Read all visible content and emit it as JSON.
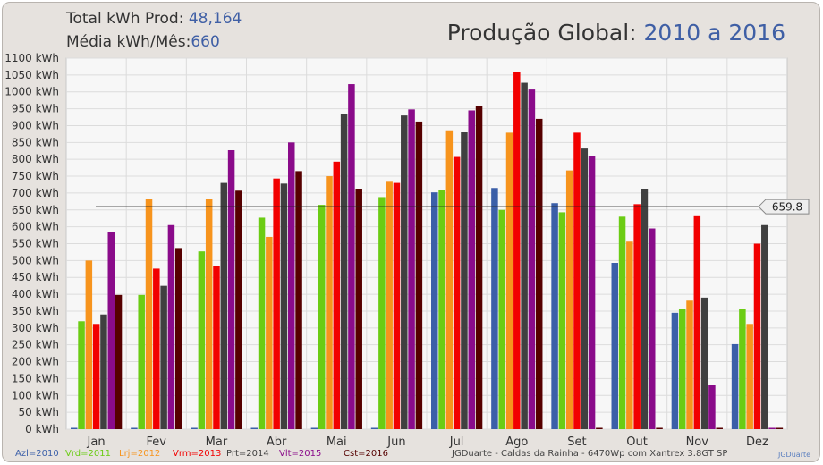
{
  "header": {
    "total_label": "Total kWh Prod:",
    "total_value": "48,164",
    "avg_label": "Média kWh/Mês:",
    "avg_value": "660",
    "title_label": "Produção Global:",
    "title_value": "2010 a 2016"
  },
  "chart_data": {
    "type": "bar",
    "categories": [
      "Jan",
      "Fev",
      "Mar",
      "Abr",
      "Mai",
      "Jun",
      "Jul",
      "Ago",
      "Set",
      "Out",
      "Nov",
      "Dez"
    ],
    "y_ticks": [
      "0 kWh",
      "50 kWh",
      "100 kWh",
      "150 kWh",
      "200 kWh",
      "250 kWh",
      "300 kWh",
      "350 kWh",
      "400 kWh",
      "450 kWh",
      "500 kWh",
      "550 kWh",
      "600 kWh",
      "650 kWh",
      "700 kWh",
      "750 kWh",
      "800 kWh",
      "850 kWh",
      "900 kWh",
      "950 kWh",
      "1000 kWh",
      "1050 kWh",
      "1100 kWh"
    ],
    "ylim": [
      0,
      1100
    ],
    "grid": true,
    "series": [
      {
        "name": "Azl=2010",
        "color": "#3b5fa8",
        "values": [
          0,
          0,
          0,
          0,
          0,
          0,
          702,
          715,
          670,
          493,
          345,
          252
        ]
      },
      {
        "name": "Vrd=2011",
        "color": "#6bcc14",
        "values": [
          320,
          398,
          527,
          627,
          665,
          688,
          709,
          650,
          643,
          630,
          357,
          357
        ]
      },
      {
        "name": "Lrj=2012",
        "color": "#f7941d",
        "values": [
          500,
          683,
          683,
          570,
          750,
          736,
          886,
          879,
          767,
          556,
          381,
          312
        ]
      },
      {
        "name": "Vrm=2013",
        "color": "#f20000",
        "values": [
          312,
          476,
          483,
          743,
          793,
          730,
          807,
          1060,
          879,
          667,
          634,
          550
        ]
      },
      {
        "name": "Prt=2014",
        "color": "#404040",
        "values": [
          340,
          425,
          730,
          728,
          933,
          930,
          880,
          1027,
          832,
          713,
          390,
          605
        ]
      },
      {
        "name": "Vlt=2015",
        "color": "#8a0b8a",
        "values": [
          585,
          605,
          827,
          850,
          1023,
          948,
          945,
          1007,
          810,
          595,
          130,
          0
        ]
      },
      {
        "name": "Cst=2016",
        "color": "#560000",
        "values": [
          398,
          537,
          707,
          765,
          713,
          912,
          957,
          920,
          0,
          0,
          0,
          0
        ]
      }
    ],
    "average_line": {
      "value": 659.8,
      "label": "659.8"
    }
  },
  "footer": {
    "credit": "JGDuarte  -  Caldas da Rainha  -  6470Wp com Xantrex 3.8GT SP",
    "watermark": "JGDuarte"
  }
}
